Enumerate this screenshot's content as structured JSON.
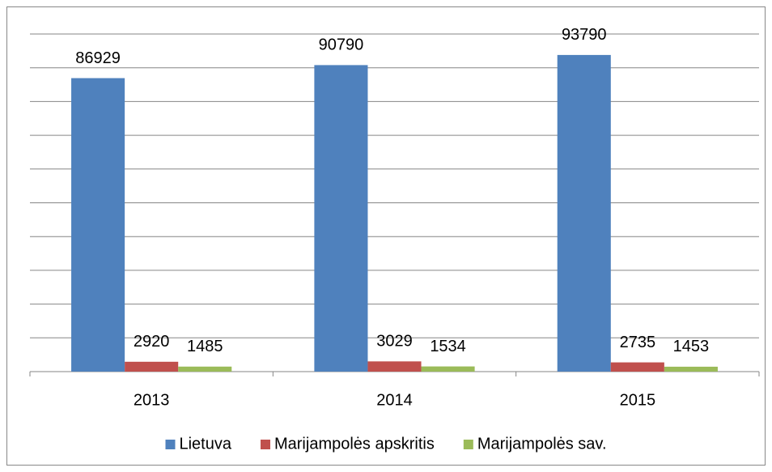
{
  "chart_data": {
    "type": "bar",
    "categories": [
      "2013",
      "2014",
      "2015"
    ],
    "series": [
      {
        "name": "Lietuva",
        "color": "#4f81bd",
        "values": [
          86929,
          90790,
          93790
        ]
      },
      {
        "name": "Marijampolės apskritis",
        "color": "#c0504d",
        "values": [
          2920,
          3029,
          2735
        ]
      },
      {
        "name": "Marijampolės sav.",
        "color": "#9bbb59",
        "values": [
          1485,
          1534,
          1453
        ]
      }
    ],
    "ylim": [
      0,
      100000
    ],
    "yticks": [
      0,
      10000,
      20000,
      30000,
      40000,
      50000,
      60000,
      70000,
      80000,
      90000,
      100000
    ],
    "grid": true,
    "legend": "bottom"
  }
}
